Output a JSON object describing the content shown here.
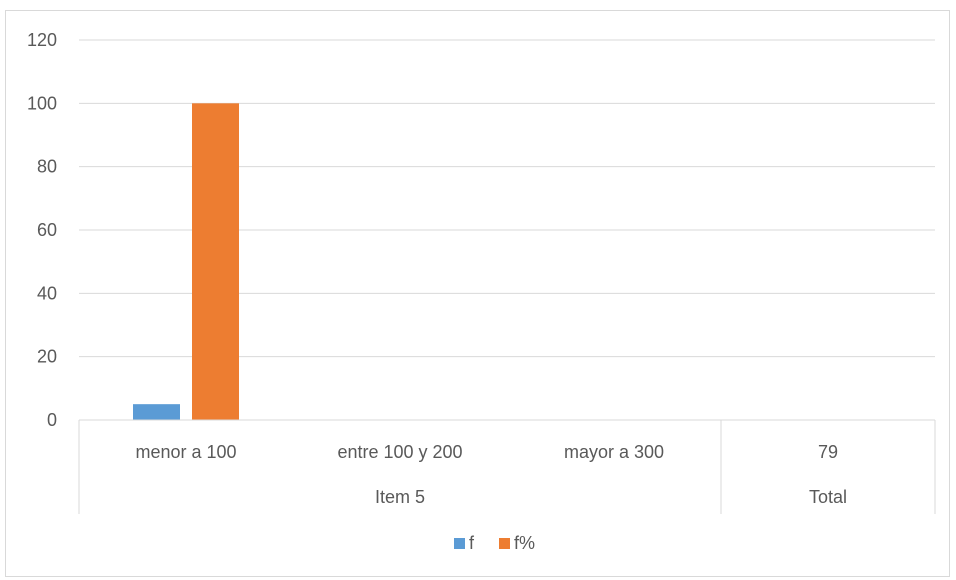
{
  "chart_data": {
    "type": "bar",
    "categories": [
      "menor a 100",
      "entre 100 y 200",
      "mayor a 300",
      "79"
    ],
    "groups": [
      {
        "label": "Item 5",
        "span": [
          0,
          2
        ]
      },
      {
        "label": "Total",
        "span": [
          3,
          3
        ]
      }
    ],
    "series": [
      {
        "name": "f",
        "color": "#5b9bd5",
        "values": [
          5,
          0,
          0,
          0
        ]
      },
      {
        "name": "f%",
        "color": "#ed7d31",
        "values": [
          100,
          0,
          0,
          0
        ]
      }
    ],
    "ylim": [
      0,
      120
    ],
    "yticks": [
      0,
      20,
      40,
      60,
      80,
      100,
      120
    ],
    "grid": true,
    "legend_position": "bottom"
  }
}
